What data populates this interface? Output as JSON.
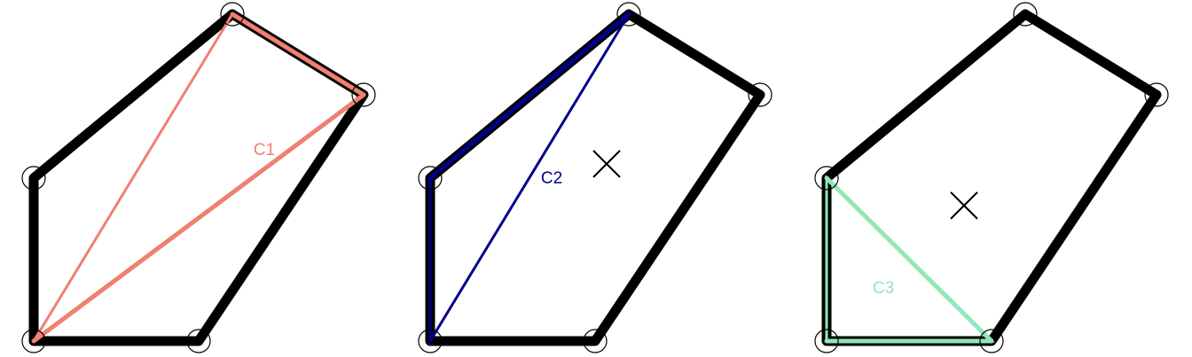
{
  "panels": [
    {
      "id": "panel-1",
      "component": {
        "label": "C1",
        "color": "#F08070",
        "vertex_indices": [
          1,
          2,
          4
        ],
        "hull_edges": [
          [
            1,
            2
          ],
          [
            2,
            4
          ]
        ],
        "show_center_mark": false
      }
    },
    {
      "id": "panel-2",
      "component": {
        "label": "C2",
        "color": "#00008B",
        "vertex_indices": [
          0,
          1,
          4
        ],
        "hull_edges": [
          [
            0,
            1
          ]
        ],
        "show_center_mark": true
      }
    },
    {
      "id": "panel-3",
      "component": {
        "label": "C3",
        "color": "#90E8B8",
        "vertex_indices": [
          0,
          3,
          4
        ],
        "hull_edges": [
          [
            0,
            3
          ],
          [
            3,
            4
          ]
        ],
        "show_center_mark": true
      }
    }
  ],
  "polygon": {
    "stroke_color": "#000000",
    "vertex_count": 5
  }
}
